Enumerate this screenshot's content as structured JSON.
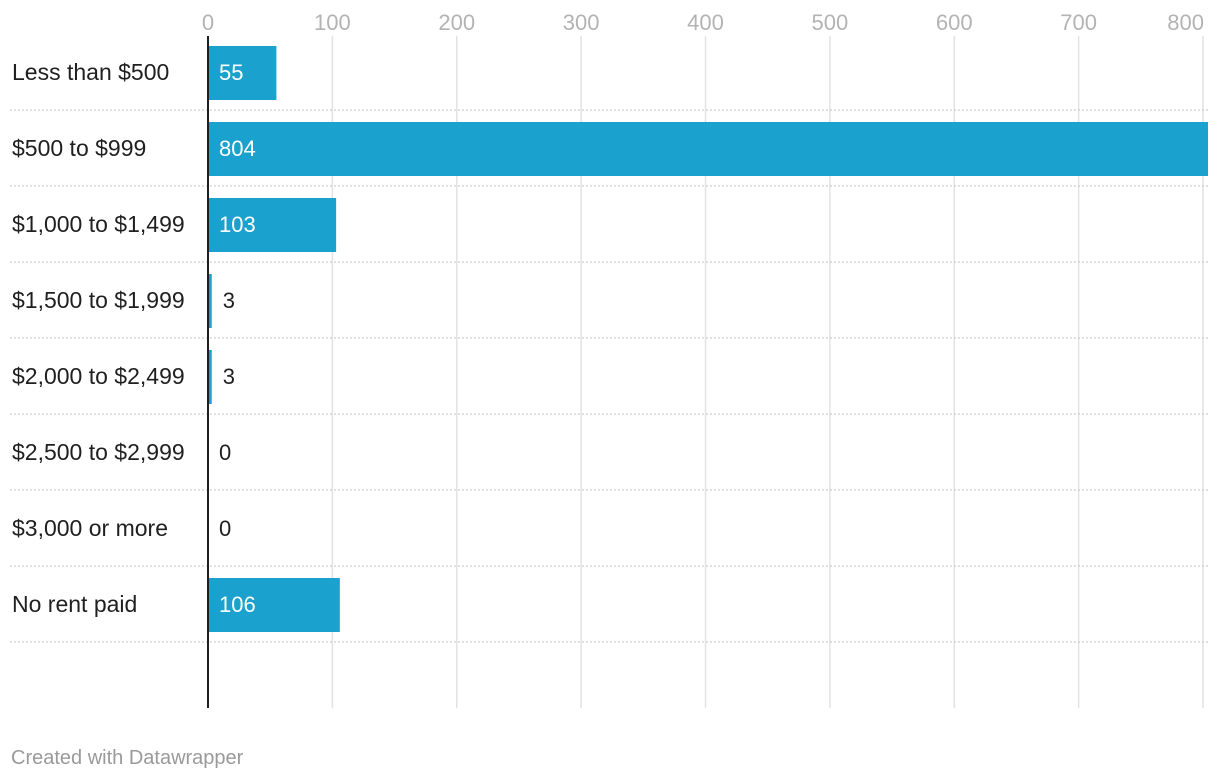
{
  "chart_data": {
    "type": "bar",
    "orientation": "horizontal",
    "categories": [
      "Less than $500",
      "$500 to $999",
      "$1,000 to $1,499",
      "$1,500 to $1,999",
      "$2,000 to $2,499",
      "$2,500 to $2,999",
      "$3,000 or more",
      "No rent paid"
    ],
    "values": [
      55,
      804,
      103,
      3,
      3,
      0,
      0,
      106
    ],
    "value_labels": [
      "55",
      "804",
      "103",
      "3",
      "3",
      "0",
      "0",
      "106"
    ],
    "xticks": [
      0,
      100,
      200,
      300,
      400,
      500,
      600,
      700,
      800
    ],
    "xtick_labels": [
      "0",
      "100",
      "200",
      "300",
      "400",
      "500",
      "600",
      "700",
      "800"
    ],
    "xlim": [
      0,
      804
    ],
    "x_axis_position": "top",
    "grid": true,
    "legend": "none",
    "colors": {
      "bar": "#1aa1ce",
      "grid": "#e2e2e2",
      "axis": "#1f1f1f",
      "row_separator": "#cccccc"
    }
  },
  "footer": {
    "credit": "Created with Datawrapper"
  }
}
